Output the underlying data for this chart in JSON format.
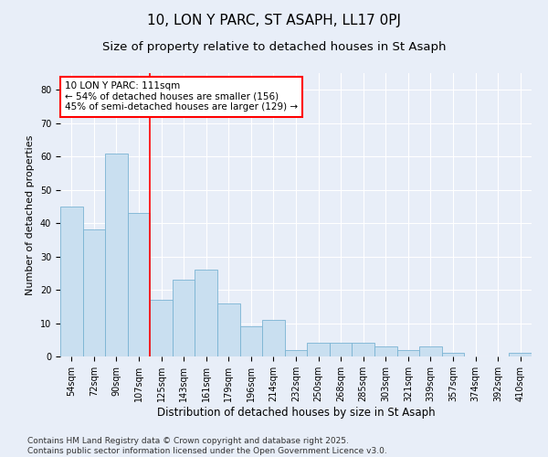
{
  "title": "10, LON Y PARC, ST ASAPH, LL17 0PJ",
  "subtitle": "Size of property relative to detached houses in St Asaph",
  "xlabel": "Distribution of detached houses by size in St Asaph",
  "ylabel": "Number of detached properties",
  "categories": [
    "54sqm",
    "72sqm",
    "90sqm",
    "107sqm",
    "125sqm",
    "143sqm",
    "161sqm",
    "179sqm",
    "196sqm",
    "214sqm",
    "232sqm",
    "250sqm",
    "268sqm",
    "285sqm",
    "303sqm",
    "321sqm",
    "339sqm",
    "357sqm",
    "374sqm",
    "392sqm",
    "410sqm"
  ],
  "values": [
    45,
    38,
    61,
    43,
    17,
    23,
    26,
    16,
    9,
    11,
    2,
    4,
    4,
    4,
    3,
    2,
    3,
    1,
    0,
    0,
    1
  ],
  "bar_color": "#c9dff0",
  "bar_edge_color": "#7ab3d3",
  "vline_x": 3.5,
  "vline_color": "red",
  "annotation_text": "10 LON Y PARC: 111sqm\n← 54% of detached houses are smaller (156)\n45% of semi-detached houses are larger (129) →",
  "annotation_box_color": "red",
  "annotation_text_color": "black",
  "ylim": [
    0,
    85
  ],
  "yticks": [
    0,
    10,
    20,
    30,
    40,
    50,
    60,
    70,
    80
  ],
  "background_color": "#e8eef8",
  "grid_color": "white",
  "footer": "Contains HM Land Registry data © Crown copyright and database right 2025.\nContains public sector information licensed under the Open Government Licence v3.0.",
  "title_fontsize": 11,
  "subtitle_fontsize": 9.5,
  "xlabel_fontsize": 8.5,
  "ylabel_fontsize": 8,
  "tick_fontsize": 7,
  "annotation_fontsize": 7.5,
  "footer_fontsize": 6.5
}
